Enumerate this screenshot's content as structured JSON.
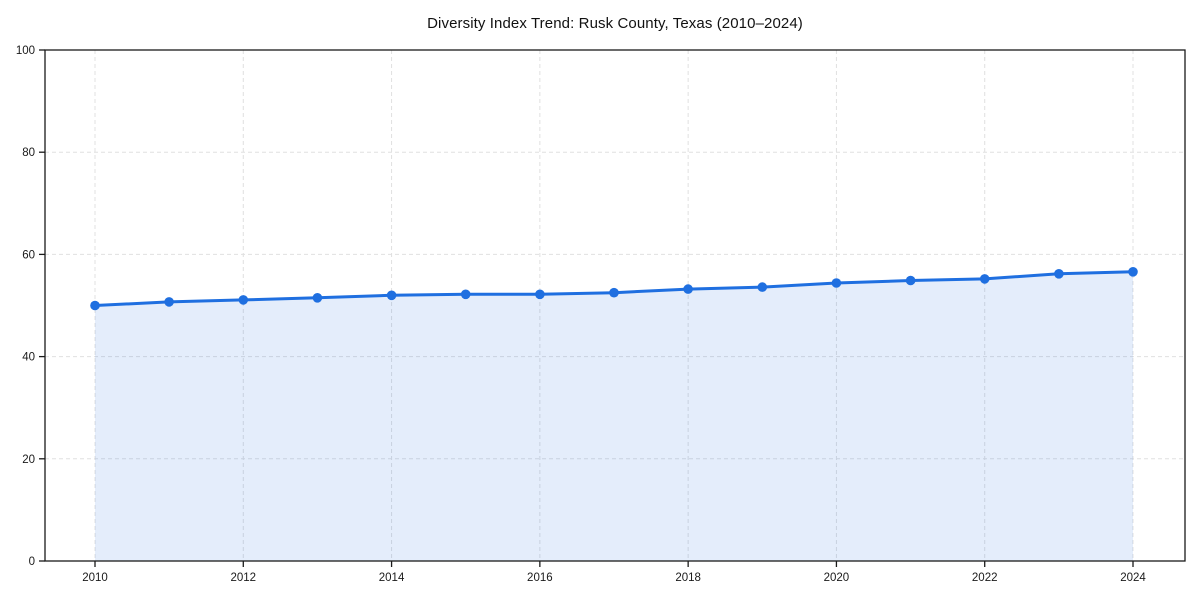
{
  "chart_data": {
    "type": "line",
    "title": "Diversity Index Trend: Rusk County, Texas (2010–2024)",
    "xlabel": "",
    "ylabel": "",
    "x": [
      2010,
      2011,
      2012,
      2013,
      2014,
      2015,
      2016,
      2017,
      2018,
      2019,
      2020,
      2021,
      2022,
      2023,
      2024
    ],
    "series": [
      {
        "name": "Diversity Index",
        "values": [
          50.0,
          50.7,
          51.1,
          51.5,
          52.0,
          52.2,
          52.2,
          52.5,
          53.2,
          53.6,
          54.4,
          54.9,
          55.2,
          56.2,
          56.6
        ]
      }
    ],
    "ylim": [
      0,
      100
    ],
    "yticks": [
      0,
      20,
      40,
      60,
      80,
      100
    ],
    "xticks": [
      2010,
      2012,
      2014,
      2016,
      2018,
      2020,
      2022,
      2024
    ],
    "grid": true,
    "grid_style": "dashed",
    "legend": "none",
    "area_fill": true,
    "markers": true,
    "colors": {
      "line": "#1f6fe0",
      "marker": "#1f6fe0",
      "fill": "#1f6fe0",
      "fill_opacity": 0.12,
      "grid": "#e0e0e0",
      "spine": "#1a1a1a",
      "tick_label": "#1a1a1a",
      "title": "#111111",
      "background": "#ffffff"
    }
  }
}
